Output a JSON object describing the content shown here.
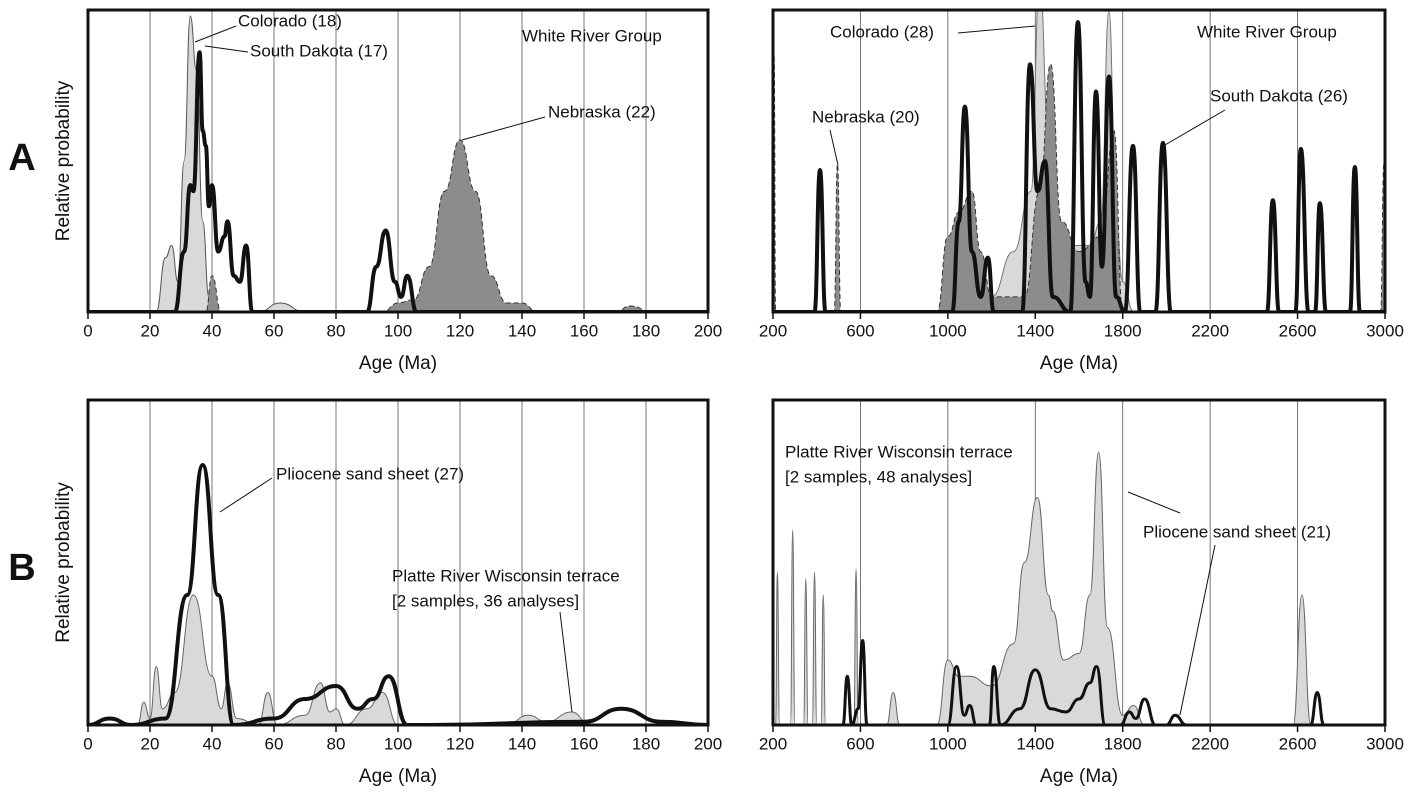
{
  "chart_data": [
    {
      "type": "density",
      "panel_label": "A",
      "annotation": "White River Group",
      "xlabel": "Age (Ma)",
      "ylabel": "Relative probability",
      "xlim": [
        0,
        200
      ],
      "ylim": [
        0,
        1
      ],
      "xticks": [
        0,
        20,
        40,
        60,
        80,
        100,
        120,
        140,
        160,
        180,
        200
      ],
      "grid": true,
      "series": [
        {
          "name": "Colorado (18)",
          "color": "#555555",
          "fill": "#d9d9d9",
          "width": 1,
          "x": [
            0,
            22,
            25,
            27,
            29,
            31,
            33,
            35,
            37,
            39,
            42,
            55,
            62,
            70,
            200
          ],
          "values": [
            0,
            0,
            0.18,
            0.22,
            0.1,
            0.5,
            0.98,
            0.8,
            0.3,
            0.05,
            0,
            0,
            0.03,
            0,
            0
          ]
        },
        {
          "name": "Nebraska (22)",
          "color": "#333333",
          "fill": "#8c8c8c",
          "width": 1,
          "dashed": true,
          "x": [
            0,
            38,
            40,
            43,
            95,
            100,
            105,
            110,
            115,
            120,
            125,
            130,
            135,
            140,
            145,
            170,
            175,
            182,
            200
          ],
          "values": [
            0,
            0,
            0.12,
            0,
            0,
            0.03,
            0.04,
            0.15,
            0.4,
            0.57,
            0.4,
            0.12,
            0.03,
            0.03,
            0,
            0,
            0.02,
            0,
            0
          ]
        },
        {
          "name": "South Dakota (17)",
          "color": "#111111",
          "width": 4,
          "x": [
            0,
            28,
            31,
            33,
            34,
            36,
            37,
            38,
            39,
            40,
            42,
            44,
            45,
            47,
            49,
            51,
            53,
            90,
            93,
            96,
            99,
            101,
            103,
            106,
            200
          ],
          "values": [
            0,
            0,
            0.2,
            0.42,
            0.4,
            0.86,
            0.6,
            0.55,
            0.35,
            0.42,
            0.2,
            0.25,
            0.3,
            0.12,
            0.1,
            0.22,
            0,
            0,
            0.15,
            0.27,
            0.1,
            0.05,
            0.12,
            0,
            0
          ]
        }
      ]
    },
    {
      "type": "density",
      "annotation": "White River Group",
      "xlabel": "Age (Ma)",
      "xlim": [
        200,
        3000
      ],
      "ylim": [
        0,
        1
      ],
      "xticks": [
        200,
        600,
        1000,
        1400,
        1800,
        2200,
        2600,
        3000
      ],
      "grid": true,
      "series": [
        {
          "name": "Colorado (28)",
          "color": "#777777",
          "fill": "#d9d9d9",
          "width": 1,
          "x": [
            200,
            1100,
            1200,
            1300,
            1380,
            1420,
            1460,
            1500,
            1550,
            1650,
            1700,
            1737,
            1770,
            1800,
            1850,
            3000
          ],
          "values": [
            0,
            0,
            0.05,
            0.2,
            0.4,
            1.1,
            0.6,
            0.3,
            0.22,
            0.22,
            0.3,
            1.0,
            0.3,
            0.1,
            0,
            0
          ]
        },
        {
          "name": "Nebraska (20)",
          "color": "#333333",
          "fill": "#8c8c8c",
          "width": 1,
          "dashed": true,
          "x": [
            200,
            205,
            212,
            480,
            495,
            510,
            950,
            1000,
            1050,
            1110,
            1150,
            1200,
            1350,
            1420,
            1470,
            1520,
            1600,
            1700,
            1760,
            1800,
            2980,
            2995,
            3000
          ],
          "values": [
            0,
            0.86,
            0,
            0,
            0.49,
            0,
            0,
            0.25,
            0.33,
            0.4,
            0.2,
            0.05,
            0.05,
            0.4,
            0.82,
            0.3,
            0.2,
            0.25,
            0.6,
            0,
            0,
            0.49,
            0.49
          ]
        },
        {
          "name": "South Dakota (26)",
          "color": "#111111",
          "width": 4,
          "x": [
            200,
            390,
            415,
            440,
            1020,
            1050,
            1078,
            1110,
            1150,
            1183,
            1210,
            1340,
            1376,
            1410,
            1444,
            1480,
            1560,
            1595,
            1630,
            1650,
            1678,
            1705,
            1737,
            1770,
            1810,
            1847,
            1880,
            1950,
            1984,
            2020,
            2460,
            2487,
            2515,
            2590,
            2615,
            2650,
            2680,
            2702,
            2730,
            2840,
            2862,
            2885,
            3000
          ],
          "values": [
            0,
            0,
            0.47,
            0,
            0,
            0.3,
            0.68,
            0.2,
            0.05,
            0.18,
            0,
            0,
            0.82,
            0.4,
            0.5,
            0.05,
            0,
            0.96,
            0.1,
            0.05,
            0.73,
            0.15,
            0.78,
            0.05,
            0,
            0.55,
            0,
            0,
            0.56,
            0,
            0,
            0.37,
            0,
            0,
            0.54,
            0,
            0,
            0.36,
            0,
            0,
            0.48,
            0,
            0
          ]
        }
      ]
    },
    {
      "type": "density",
      "panel_label": "B",
      "xlabel": "Age (Ma)",
      "ylabel": "Relative probability",
      "xlim": [
        0,
        200
      ],
      "ylim": [
        0,
        1
      ],
      "xticks": [
        0,
        20,
        40,
        60,
        80,
        100,
        120,
        140,
        160,
        180,
        200
      ],
      "grid": true,
      "series": [
        {
          "name": [
            "Platte River Wisconsin terrace",
            "[2 samples, 36 analyses]"
          ],
          "color": "#666666",
          "fill": "#d9d9d9",
          "width": 1,
          "x": [
            0,
            16,
            18,
            20,
            22,
            24,
            28,
            34,
            40,
            43,
            45,
            48,
            55,
            58,
            61,
            70,
            75,
            78,
            80,
            83,
            90,
            95,
            100,
            135,
            142,
            148,
            156,
            162,
            200
          ],
          "values": [
            0,
            0,
            0.07,
            0.02,
            0.18,
            0.05,
            0.1,
            0.4,
            0.15,
            0.05,
            0.13,
            0.02,
            0,
            0.1,
            0,
            0.03,
            0.13,
            0.04,
            0.05,
            0,
            0.05,
            0.1,
            0,
            0,
            0.03,
            0.01,
            0.04,
            0,
            0
          ]
        },
        {
          "name": "Pliocene sand sheet (27)",
          "color": "#111111",
          "width": 4,
          "x": [
            0,
            7,
            14,
            25,
            32,
            37,
            42,
            47,
            60,
            70,
            80,
            87,
            92,
            97,
            103,
            110,
            160,
            172,
            185,
            200
          ],
          "values": [
            0,
            0.02,
            0,
            0.02,
            0.4,
            0.8,
            0.4,
            0,
            0.02,
            0.08,
            0.12,
            0.05,
            0.08,
            0.15,
            0,
            0,
            0.01,
            0.05,
            0.01,
            0
          ]
        }
      ]
    },
    {
      "type": "density",
      "xlabel": "Age (Ma)",
      "xlim": [
        200,
        3000
      ],
      "ylim": [
        0,
        1
      ],
      "xticks": [
        200,
        600,
        1000,
        1400,
        1800,
        2200,
        2600,
        3000
      ],
      "grid": true,
      "series": [
        {
          "name": [
            "Platte River Wisconsin terrace",
            "[2 samples, 48 analyses]"
          ],
          "color": "#666666",
          "fill": "#d9d9d9",
          "width": 1,
          "x": [
            200,
            212,
            220,
            230,
            280,
            290,
            300,
            340,
            350,
            360,
            380,
            390,
            400,
            420,
            430,
            440,
            570,
            580,
            590,
            720,
            750,
            780,
            950,
            1000,
            1050,
            1100,
            1200,
            1300,
            1350,
            1410,
            1460,
            1480,
            1530,
            1600,
            1650,
            1690,
            1730,
            1800,
            1850,
            1900,
            2580,
            2620,
            2660,
            3000
          ],
          "values": [
            0,
            0,
            0.47,
            0,
            0,
            0.6,
            0,
            0,
            0.45,
            0,
            0,
            0.47,
            0,
            0,
            0.4,
            0,
            0,
            0.48,
            0,
            0,
            0.1,
            0,
            0,
            0.2,
            0.15,
            0.15,
            0.12,
            0.25,
            0.5,
            0.7,
            0.4,
            0.35,
            0.2,
            0.22,
            0.4,
            0.84,
            0.3,
            0.03,
            0.06,
            0,
            0,
            0.4,
            0,
            0
          ]
        },
        {
          "name": "Pliocene sand sheet (21)",
          "color": "#111111",
          "width": 3,
          "x": [
            200,
            520,
            540,
            560,
            590,
            610,
            630,
            1000,
            1040,
            1075,
            1100,
            1130,
            1190,
            1210,
            1240,
            1330,
            1400,
            1470,
            1540,
            1600,
            1650,
            1680,
            1720,
            1790,
            1830,
            1860,
            1900,
            1950,
            2000,
            2040,
            2090,
            2660,
            2690,
            2720,
            3000
          ],
          "values": [
            0,
            0,
            0.15,
            0,
            0.05,
            0.26,
            0,
            0,
            0.18,
            0.03,
            0.06,
            0,
            0,
            0.18,
            0,
            0.05,
            0.17,
            0.05,
            0.04,
            0.08,
            0.13,
            0.18,
            0,
            0,
            0.04,
            0.02,
            0.08,
            0,
            0,
            0.03,
            0,
            0,
            0.1,
            0,
            0
          ]
        }
      ]
    }
  ]
}
